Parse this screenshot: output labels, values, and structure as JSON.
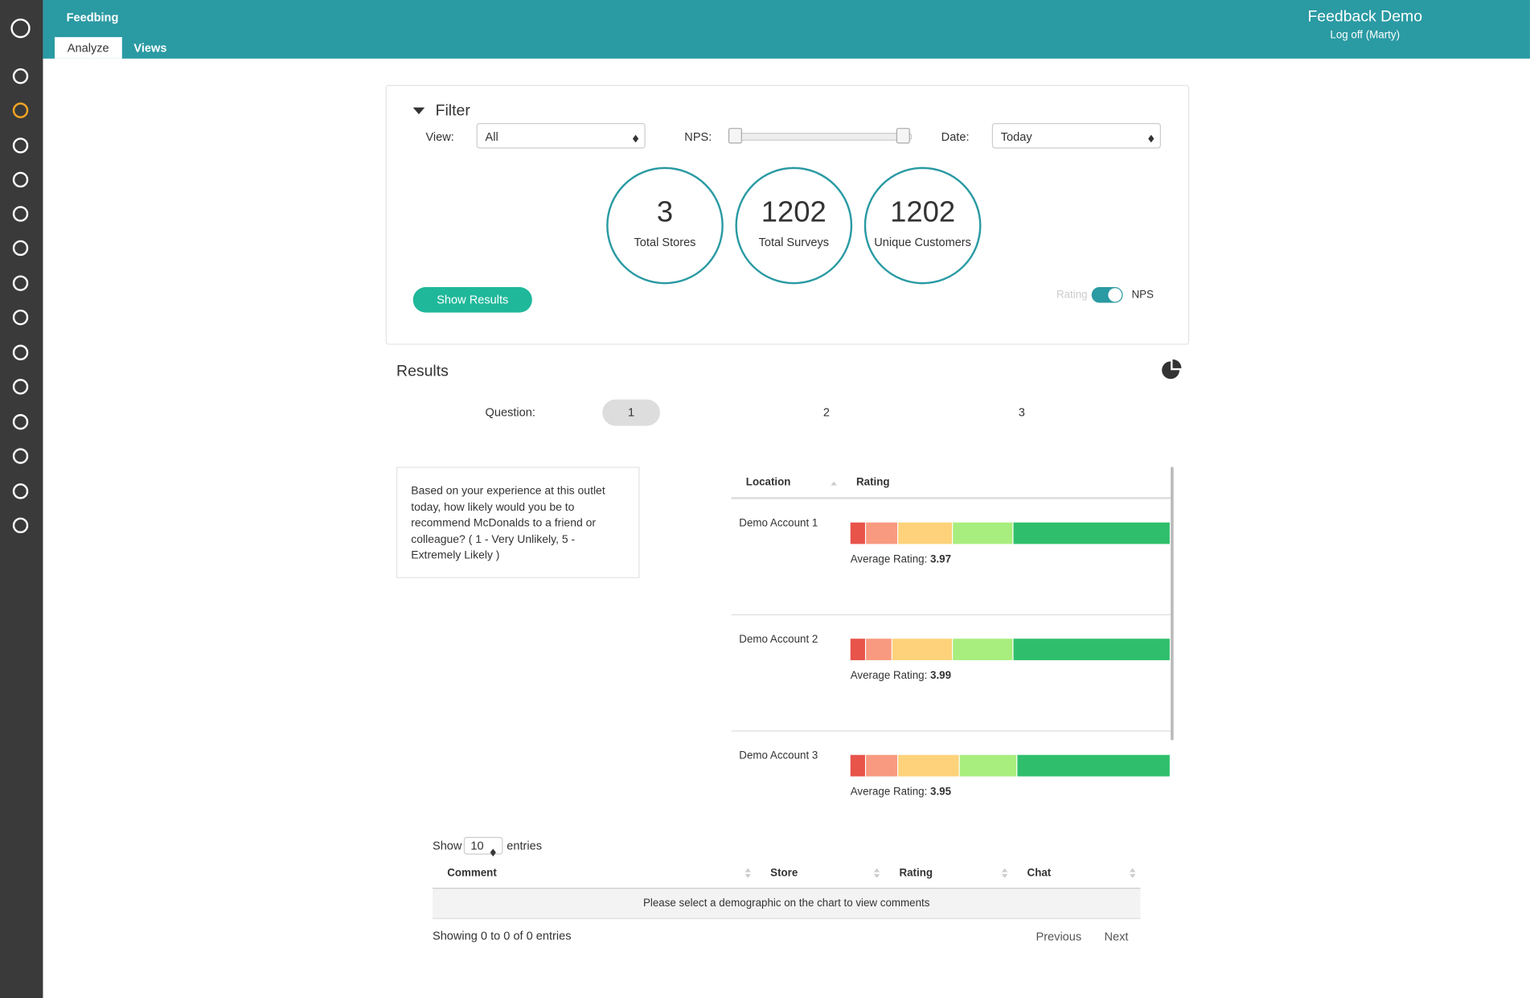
{
  "header": {
    "app": "Feedbing",
    "tabs": [
      "Analyze",
      "Views"
    ],
    "account": "Feedback Demo",
    "logoff": "Log off (Marty)"
  },
  "filter": {
    "title": "Filter",
    "view_label": "View:",
    "view_value": "All",
    "nps_label": "NPS:",
    "date_label": "Date:",
    "date_value": "Today",
    "stats": [
      {
        "value": 3,
        "label": "Total Stores"
      },
      {
        "value": 1202,
        "label": "Total Surveys"
      },
      {
        "value": 1202,
        "label": "Unique Customers"
      }
    ],
    "button": "Show Results",
    "toggle": [
      "Rating",
      "NPS"
    ]
  },
  "results": {
    "title": "Results",
    "question_label": "Question:",
    "questions": [
      1,
      2,
      3
    ],
    "question_text": "Based on your experience at this outlet today, how likely would you be to recommend McDonalds to a friend or colleague? ( 1 - Very Unlikely, 5 - Extremely Likely )",
    "table_headers": [
      "Location",
      "Rating"
    ],
    "segment_colors": [
      "#e8534a",
      "#f89a80",
      "#fdd27a",
      "#a8ee7e",
      "#2fbf6c"
    ],
    "rows": [
      {
        "location": "Demo Account 1",
        "avg_label": "Average Rating:",
        "avg": 3.97,
        "distribution": [
          5,
          10,
          17,
          19,
          49
        ]
      },
      {
        "location": "Demo Account 2",
        "avg_label": "Average Rating:",
        "avg": 3.99,
        "distribution": [
          5,
          8,
          19,
          19,
          49
        ]
      },
      {
        "location": "Demo Account 3",
        "avg_label": "Average Rating:",
        "avg": 3.95,
        "distribution": [
          5,
          10,
          19,
          18,
          48
        ]
      }
    ]
  },
  "comments": {
    "show": "Show",
    "page_size": 10,
    "entries": "entries",
    "headers": [
      "Comment",
      "Store",
      "Rating",
      "Chat"
    ],
    "empty": "Please select a demographic on the chart to view comments",
    "info": "Showing 0 to 0 of 0 entries",
    "previous": "Previous",
    "next": "Next"
  }
}
